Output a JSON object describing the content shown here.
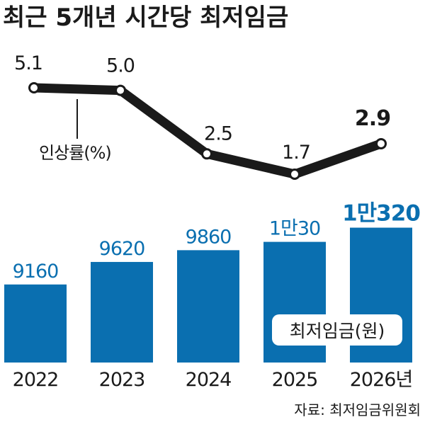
{
  "chart_data": {
    "type": "bar",
    "title": "최근 5개년 시간당 최저임금",
    "categories": [
      "2022",
      "2023",
      "2024",
      "2025",
      "2026년"
    ],
    "series": [
      {
        "name": "최저임금(원)",
        "values": [
          9160,
          9620,
          9860,
          10030,
          10320
        ],
        "labels": [
          "9160",
          "9620",
          "9860",
          "1만30",
          "1만320"
        ],
        "color": "#0a6fb0"
      },
      {
        "name": "인상률(%)",
        "type": "line",
        "values": [
          5.1,
          5.0,
          2.5,
          1.7,
          2.9
        ],
        "labels": [
          "5.1",
          "5.0",
          "2.5",
          "1.7",
          "2.9"
        ],
        "color": "#1a1a1a"
      }
    ],
    "source": "자료: 최저임금위원회"
  }
}
